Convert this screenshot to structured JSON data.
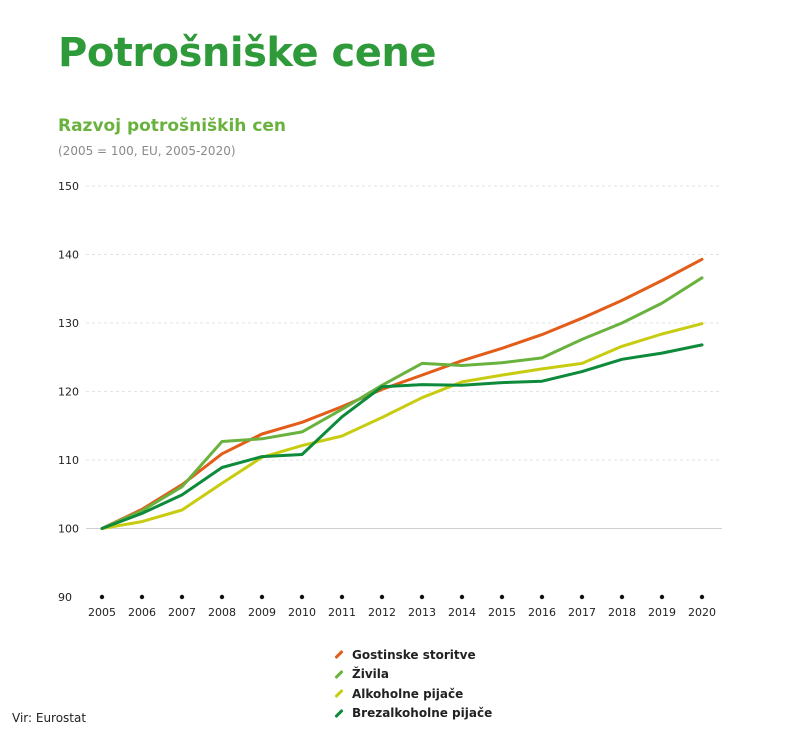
{
  "page": {
    "title": "Potrošniške cene",
    "source": "Vir: Eurostat"
  },
  "chart_data": {
    "type": "line",
    "title": "Razvoj potrošniških cen",
    "subtitle": "(2005 = 100, EU, 2005-2020)",
    "xlabel": "",
    "ylabel": "",
    "x": [
      "2005",
      "2006",
      "2007",
      "2008",
      "2009",
      "2010",
      "2011",
      "2012",
      "2013",
      "2014",
      "2015",
      "2016",
      "2017",
      "2018",
      "2019",
      "2020"
    ],
    "ylim": [
      90,
      150
    ],
    "yticks": [
      90,
      100,
      110,
      120,
      130,
      140,
      150
    ],
    "grid": true,
    "legend_position": "bottom-center",
    "series": [
      {
        "name": "Gostinske storitve",
        "color": "#e35c1a",
        "values": [
          100,
          102.8,
          106.4,
          110.9,
          113.8,
          115.5,
          117.8,
          120.3,
          122.4,
          124.5,
          126.3,
          128.3,
          130.7,
          133.3,
          136.2,
          139.3
        ]
      },
      {
        "name": "Živila",
        "color": "#6ab23e",
        "values": [
          100,
          102.6,
          106.1,
          112.7,
          113.1,
          114.1,
          117.4,
          120.9,
          124.1,
          123.8,
          124.2,
          124.9,
          127.6,
          130.0,
          132.9,
          136.6
        ]
      },
      {
        "name": "Alkoholne pijače",
        "color": "#c8cc10",
        "values": [
          100,
          101.0,
          102.7,
          106.6,
          110.4,
          112.1,
          113.5,
          116.2,
          119.1,
          121.4,
          122.4,
          123.3,
          124.1,
          126.6,
          128.4,
          129.9
        ]
      },
      {
        "name": "Brezalkoholne pijače",
        "color": "#0d8a3a",
        "values": [
          100,
          102.2,
          104.9,
          108.9,
          110.5,
          110.8,
          116.3,
          120.7,
          121.0,
          120.9,
          121.3,
          121.5,
          122.9,
          124.7,
          125.6,
          126.8
        ]
      }
    ]
  }
}
